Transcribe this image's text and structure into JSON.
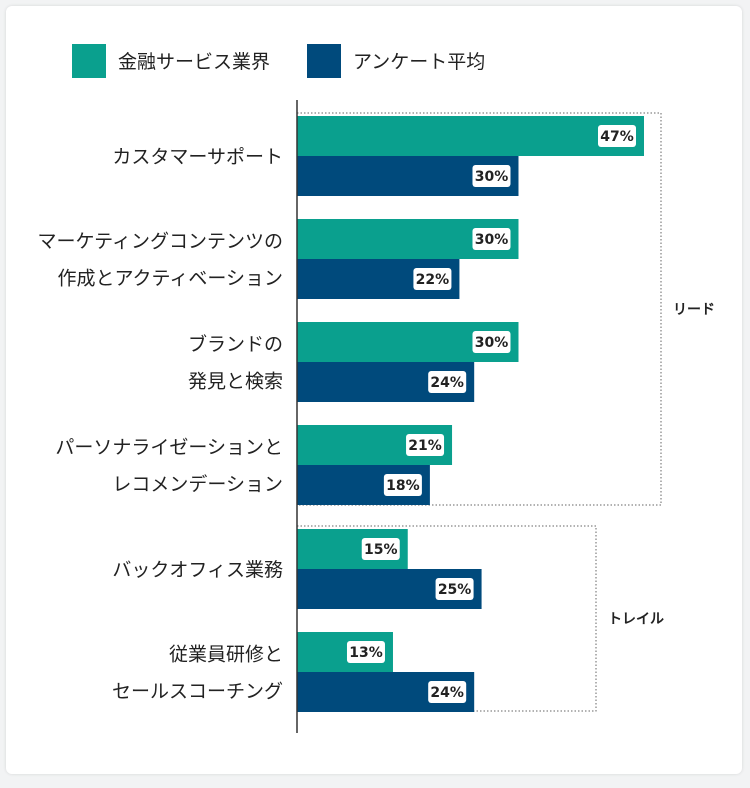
{
  "chart_data": {
    "type": "bar",
    "orientation": "horizontal",
    "categories": [
      [
        "カスタマーサポート"
      ],
      [
        "マーケティングコンテンツの",
        "作成とアクティベーション"
      ],
      [
        "ブランドの",
        "発見と検索"
      ],
      [
        "パーソナライゼーションと",
        "レコメンデーション"
      ],
      [
        "バックオフィス業務"
      ],
      [
        "従業員研修と",
        "セールスコーチング"
      ]
    ],
    "series": [
      {
        "name": "金融サービス業界",
        "color": "#0aa08e",
        "values": [
          47,
          30,
          30,
          21,
          15,
          13
        ]
      },
      {
        "name": "アンケート平均",
        "color": "#004a7c",
        "values": [
          30,
          22,
          24,
          18,
          25,
          24
        ]
      }
    ],
    "value_suffix": "%",
    "xlim": [
      0,
      47
    ],
    "legend_position": "top-left",
    "groups": [
      {
        "label": "リード",
        "from": 0,
        "to": 3
      },
      {
        "label": "トレイル",
        "from": 4,
        "to": 5
      }
    ]
  }
}
